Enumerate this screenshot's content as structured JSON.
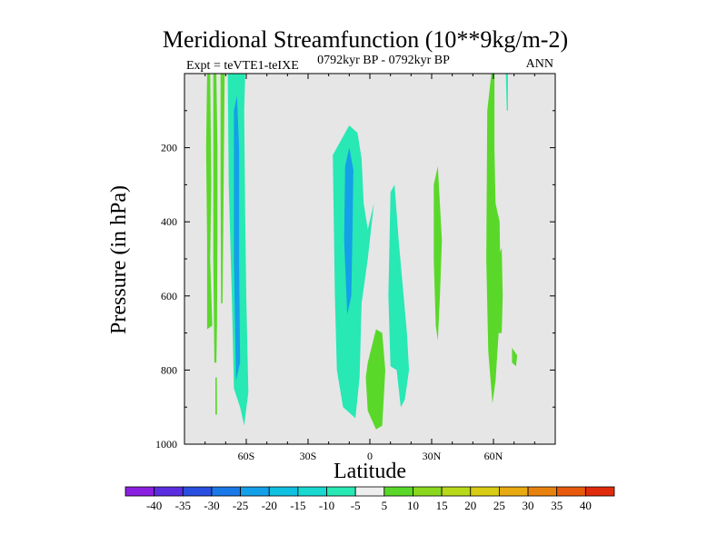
{
  "chart_data": {
    "type": "heatmap",
    "title": "Meridional Streamfunction (10**9kg/m-2)",
    "subtitle_left": "Expt = teVTE1-teIXE",
    "subtitle_center": "0792kyr BP - 0792kyr BP",
    "subtitle_right": "ANN",
    "xlabel": "Latitude",
    "ylabel": "Pressure (in hPa)",
    "x_ticks": [
      {
        "value": -60,
        "label": "60S"
      },
      {
        "value": -30,
        "label": "30S"
      },
      {
        "value": 0,
        "label": "0"
      },
      {
        "value": 30,
        "label": "30N"
      },
      {
        "value": 60,
        "label": "60N"
      }
    ],
    "y_ticks": [
      {
        "value": 200,
        "label": "200"
      },
      {
        "value": 400,
        "label": "400"
      },
      {
        "value": 600,
        "label": "600"
      },
      {
        "value": 800,
        "label": "800"
      },
      {
        "value": 1000,
        "label": "1000"
      }
    ],
    "xlim": [
      -90,
      90
    ],
    "ylim": [
      1000,
      0
    ],
    "colorbar": {
      "levels": [
        "-40",
        "-35",
        "-30",
        "-25",
        "-20",
        "-15",
        "-10",
        "-5",
        "5",
        "10",
        "15",
        "20",
        "25",
        "30",
        "35",
        "40"
      ],
      "colors": [
        "#8c20e0",
        "#5a2ee0",
        "#2a4ee0",
        "#1a78e8",
        "#14a0e8",
        "#10c0e0",
        "#18d8d0",
        "#28e8b4",
        "#eeeeee",
        "#5ad82a",
        "#8ad81e",
        "#b8d81a",
        "#d8cc14",
        "#e8aa10",
        "#e8820e",
        "#e85a0c",
        "#e02c0c"
      ]
    },
    "regions": [
      {
        "name": "green-strip-far-south",
        "color": "#5ad82a",
        "points": [
          [
            -79,
            0
          ],
          [
            -77.5,
            0
          ],
          [
            -77,
            300
          ],
          [
            -77.5,
            500
          ],
          [
            -76.5,
            680
          ],
          [
            -79,
            690
          ],
          [
            -79,
            450
          ],
          [
            -79.5,
            200
          ]
        ]
      },
      {
        "name": "green-strip-south-2",
        "color": "#5ad82a",
        "points": [
          [
            -76,
            0
          ],
          [
            -74.5,
            0
          ],
          [
            -74,
            200
          ],
          [
            -74,
            450
          ],
          [
            -74.2,
            680
          ],
          [
            -74.5,
            780
          ],
          [
            -75.5,
            780
          ],
          [
            -76,
            500
          ]
        ]
      },
      {
        "name": "green-strip-south-3",
        "color": "#5ad82a",
        "points": [
          [
            -75,
            820
          ],
          [
            -74.3,
            820
          ],
          [
            -74.2,
            920
          ],
          [
            -75,
            920
          ]
        ]
      },
      {
        "name": "green-strip-south-4",
        "color": "#5ad82a",
        "points": [
          [
            -72.5,
            0
          ],
          [
            -70.5,
            0
          ],
          [
            -71,
            300
          ],
          [
            -71.5,
            620
          ],
          [
            -72.2,
            620
          ],
          [
            -72.5,
            300
          ]
        ]
      },
      {
        "name": "cyan-southern-polar",
        "color": "#28e8b4",
        "points": [
          [
            -69,
            0
          ],
          [
            -60.5,
            0
          ],
          [
            -61,
            100
          ],
          [
            -60.5,
            400
          ],
          [
            -60,
            600
          ],
          [
            -59,
            860
          ],
          [
            -61,
            950
          ],
          [
            -63,
            900
          ],
          [
            -66,
            850
          ],
          [
            -67,
            600
          ],
          [
            -68.5,
            300
          ]
        ]
      },
      {
        "name": "blue-southern-core",
        "color": "#14a0e8",
        "points": [
          [
            -66,
            100
          ],
          [
            -64.5,
            60
          ],
          [
            -63.5,
            200
          ],
          [
            -63.5,
            500
          ],
          [
            -63,
            780
          ],
          [
            -65,
            830
          ],
          [
            -66,
            500
          ]
        ]
      },
      {
        "name": "cyan-equatorial-south",
        "color": "#28e8b4",
        "points": [
          [
            -18,
            220
          ],
          [
            -10,
            140
          ],
          [
            -6,
            160
          ],
          [
            -4,
            230
          ],
          [
            -3,
            350
          ],
          [
            -1,
            420
          ],
          [
            2,
            350
          ],
          [
            -1,
            500
          ],
          [
            -4,
            620
          ],
          [
            -5,
            820
          ],
          [
            -7,
            930
          ],
          [
            -13,
            900
          ],
          [
            -16,
            800
          ],
          [
            -17,
            600
          ],
          [
            -17.5,
            400
          ]
        ]
      },
      {
        "name": "blue-equatorial-core",
        "color": "#14a0e8",
        "points": [
          [
            -12,
            250
          ],
          [
            -10,
            200
          ],
          [
            -8,
            260
          ],
          [
            -8.5,
            450
          ],
          [
            -9,
            600
          ],
          [
            -11,
            650
          ],
          [
            -12.5,
            450
          ]
        ]
      },
      {
        "name": "cyan-equatorial-north",
        "color": "#28e8b4",
        "points": [
          [
            10,
            320
          ],
          [
            12,
            300
          ],
          [
            14,
            450
          ],
          [
            18,
            700
          ],
          [
            19,
            800
          ],
          [
            17,
            880
          ],
          [
            15,
            900
          ],
          [
            14,
            850
          ],
          [
            13,
            800
          ],
          [
            10,
            790
          ],
          [
            9,
            600
          ]
        ]
      },
      {
        "name": "green-equatorial-north",
        "color": "#5ad82a",
        "points": [
          [
            -1,
            780
          ],
          [
            3,
            690
          ],
          [
            6,
            700
          ],
          [
            7.5,
            800
          ],
          [
            6,
            950
          ],
          [
            3,
            960
          ],
          [
            -1,
            910
          ],
          [
            -2,
            820
          ]
        ]
      },
      {
        "name": "green-subtropical-north",
        "color": "#5ad82a",
        "points": [
          [
            31,
            300
          ],
          [
            33,
            250
          ],
          [
            35,
            450
          ],
          [
            34,
            600
          ],
          [
            33,
            720
          ],
          [
            32,
            680
          ],
          [
            31,
            500
          ]
        ]
      },
      {
        "name": "green-northern-polar",
        "color": "#5ad82a",
        "points": [
          [
            57,
            100
          ],
          [
            59,
            0
          ],
          [
            60.5,
            0
          ],
          [
            60.5,
            200
          ],
          [
            61,
            350
          ],
          [
            63,
            400
          ],
          [
            63.5,
            600
          ],
          [
            62.5,
            700
          ],
          [
            61,
            830
          ],
          [
            59.5,
            890
          ],
          [
            57.5,
            750
          ],
          [
            56.5,
            500
          ]
        ]
      },
      {
        "name": "green-northern-fragment-1",
        "color": "#5ad82a",
        "points": [
          [
            62,
            500
          ],
          [
            64,
            470
          ],
          [
            64.5,
            600
          ],
          [
            64,
            700
          ],
          [
            62.5,
            700
          ]
        ]
      },
      {
        "name": "green-northern-fragment-2",
        "color": "#5ad82a",
        "points": [
          [
            69,
            740
          ],
          [
            71.5,
            760
          ],
          [
            71,
            790
          ],
          [
            69,
            780
          ]
        ]
      },
      {
        "name": "cyan-northern-sliver",
        "color": "#28e8b4",
        "points": [
          [
            66,
            0
          ],
          [
            67,
            0
          ],
          [
            67,
            100
          ],
          [
            66.5,
            100
          ]
        ]
      }
    ]
  }
}
